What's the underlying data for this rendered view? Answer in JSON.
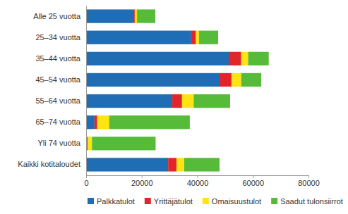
{
  "chart_data": {
    "type": "bar",
    "orientation": "horizontal",
    "stacked": true,
    "grid": false,
    "legend": "bottom",
    "categories": [
      "Alle 25 vuotta",
      "25–34 vuotta",
      "35–44 vuotta",
      "45–54 vuotta",
      "55–64 vuotta",
      "65–74 vuotta",
      "Yli 74 vuotta",
      "Kaikki kotitaloudet"
    ],
    "series": [
      {
        "name": "Palkkatulot",
        "color": "#1f6db5",
        "values": [
          17000,
          37800,
          51300,
          48000,
          31000,
          3000,
          200,
          29500
        ]
      },
      {
        "name": "Yrittäjätulot",
        "color": "#e2252b",
        "values": [
          500,
          1700,
          4500,
          4300,
          3500,
          1000,
          300,
          3000
        ]
      },
      {
        "name": "Omaisuustulot",
        "color": "#ffe312",
        "values": [
          800,
          1100,
          2500,
          3500,
          4200,
          4300,
          1600,
          2800
        ]
      },
      {
        "name": "Saadut tulonsiirrot",
        "color": "#57bb3a",
        "values": [
          6600,
          6900,
          7400,
          7200,
          13100,
          29000,
          22900,
          12700
        ]
      }
    ],
    "xlim": [
      0,
      80000
    ],
    "xticks": [
      0,
      20000,
      40000,
      60000,
      80000
    ]
  }
}
